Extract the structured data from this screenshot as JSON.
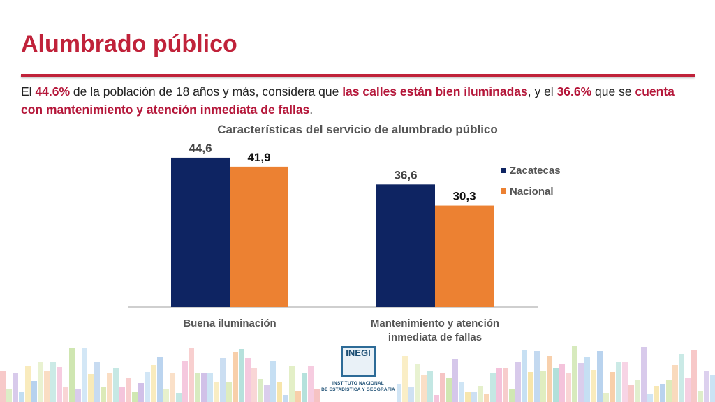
{
  "page": {
    "title": "Alumbrado público",
    "summary": [
      {
        "text": "El ",
        "hl": false
      },
      {
        "text": "44.6%",
        "hl": true
      },
      {
        "text": " de la población de 18 años y más, considera que ",
        "hl": false
      },
      {
        "text": "las calles están bien iluminadas",
        "hl": true
      },
      {
        "text": ", y el ",
        "hl": false
      },
      {
        "text": "36.6%",
        "hl": true
      },
      {
        "text": " que se ",
        "hl": false
      },
      {
        "text": "cuenta con mantenimiento y atención inmediata de fallas",
        "hl": true
      },
      {
        "text": ".",
        "hl": false
      }
    ],
    "logo": {
      "word": "INEGI",
      "line1": "INSTITUTO NACIONAL",
      "line2": "DE ESTADÍSTICA Y GEOGRAFÍA"
    }
  },
  "colors": {
    "accent": "#c0223a",
    "zacatecas": "#0e2462",
    "nacional": "#ec8132"
  },
  "chart_data": {
    "type": "bar",
    "title": "Características del servicio de alumbrado público",
    "categories": [
      [
        "Buena iluminación"
      ],
      [
        "Mantenimiento y atención",
        "inmediata de fallas"
      ]
    ],
    "series": [
      {
        "name": "Zacatecas",
        "values": [
          44.6,
          36.6
        ],
        "labels": [
          "44,6",
          "36,6"
        ],
        "color": "#0e2462"
      },
      {
        "name": "Nacional",
        "values": [
          41.9,
          30.3
        ],
        "labels": [
          "41,9",
          "30,3"
        ],
        "color": "#ec8132"
      }
    ],
    "ylim": [
      0,
      50
    ],
    "grid": false,
    "legend_position": "right"
  }
}
